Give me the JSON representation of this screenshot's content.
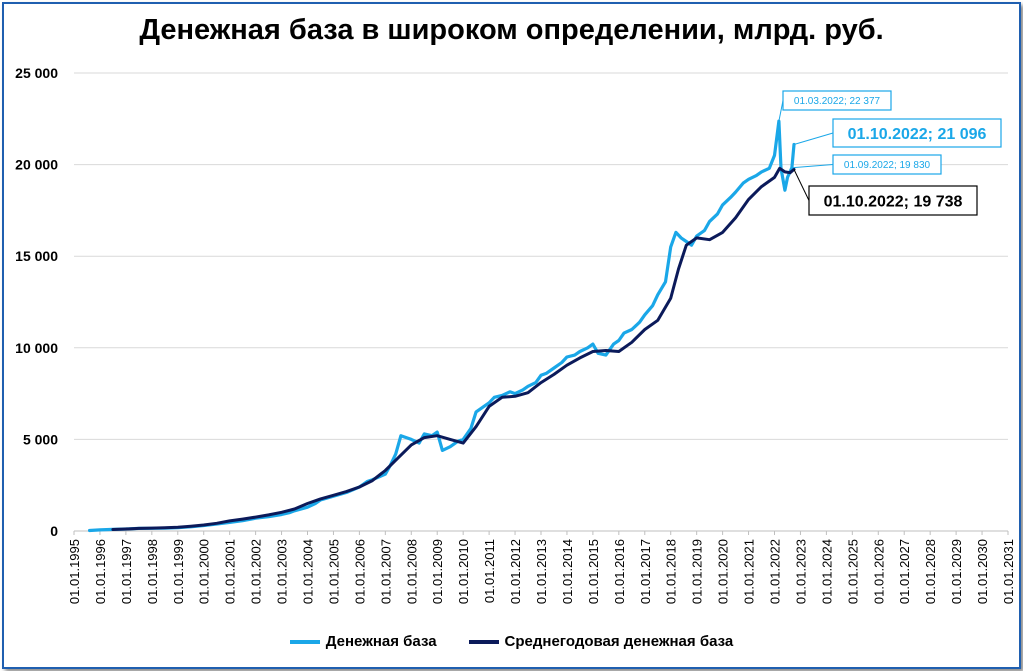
{
  "colors": {
    "base": "#1aa7e8",
    "avg": "#0b1a5a",
    "grid": "#d9d9d9",
    "frame": "#1f5fb0"
  },
  "chart_data": {
    "type": "line",
    "title": "Денежная база в широком определении, млрд. руб.",
    "ylim": [
      0,
      25000
    ],
    "yticks": [
      0,
      5000,
      10000,
      15000,
      20000,
      25000
    ],
    "ytick_labels": [
      "0",
      "5 000",
      "10 000",
      "15 000",
      "20 000",
      "25 000"
    ],
    "x_range": [
      1995,
      2031
    ],
    "xtick_labels": [
      "01.01.1995",
      "01.01.1996",
      "01.01.1997",
      "01.01.1998",
      "01.01.1999",
      "01.01.2000",
      "01.01.2001",
      "01.01.2002",
      "01.01.2003",
      "01.01.2004",
      "01.01.2005",
      "01.01.2006",
      "01.01.2007",
      "01.01.2008",
      "01.01.2009",
      "01.01.2010",
      "01.01.2011",
      "01.01.2012",
      "01.01.2013",
      "01.01.2014",
      "01.01.2015",
      "01.01.2016",
      "01.01.2017",
      "01.01.2018",
      "01.01.2019",
      "01.01.2020",
      "01.01.2021",
      "01.01.2022",
      "01.01.2023",
      "01.01.2024",
      "01.01.2025",
      "01.01.2026",
      "01.01.2027",
      "01.01.2028",
      "01.01.2029",
      "01.01.2030",
      "01.01.2031"
    ],
    "legend_position": "bottom",
    "series": [
      {
        "name": "Денежная база",
        "color_key": "base",
        "x": [
          1995.6,
          1996.0,
          1996.5,
          1997.0,
          1997.5,
          1998.0,
          1998.5,
          1999.0,
          1999.5,
          2000.0,
          2000.5,
          2001.0,
          2001.5,
          2002.0,
          2002.5,
          2003.0,
          2003.3,
          2003.5,
          2004.0,
          2004.3,
          2004.5,
          2005.0,
          2005.5,
          2006.0,
          2006.3,
          2006.5,
          2007.0,
          2007.2,
          2007.4,
          2007.6,
          2008.0,
          2008.3,
          2008.5,
          2008.8,
          2009.0,
          2009.2,
          2009.5,
          2009.8,
          2010.0,
          2010.3,
          2010.5,
          2010.8,
          2011.0,
          2011.2,
          2011.5,
          2011.8,
          2012.0,
          2012.3,
          2012.5,
          2012.8,
          2013.0,
          2013.2,
          2013.5,
          2013.8,
          2014.0,
          2014.3,
          2014.5,
          2014.8,
          2015.0,
          2015.2,
          2015.5,
          2015.8,
          2016.0,
          2016.2,
          2016.5,
          2016.8,
          2017.0,
          2017.3,
          2017.5,
          2017.8,
          2018.0,
          2018.2,
          2018.4,
          2018.6,
          2018.8,
          2019.0,
          2019.3,
          2019.5,
          2019.8,
          2020.0,
          2020.3,
          2020.5,
          2020.8,
          2021.0,
          2021.3,
          2021.5,
          2021.8,
          2022.0,
          2022.17,
          2022.25,
          2022.4,
          2022.5,
          2022.67,
          2022.75
        ],
        "values": [
          30,
          60,
          90,
          110,
          140,
          150,
          160,
          180,
          230,
          300,
          380,
          470,
          560,
          700,
          780,
          900,
          1000,
          1100,
          1300,
          1500,
          1700,
          1900,
          2100,
          2400,
          2700,
          2800,
          3100,
          3600,
          4200,
          5200,
          5000,
          4800,
          5300,
          5200,
          5400,
          4400,
          4600,
          4900,
          5000,
          5600,
          6500,
          6800,
          7000,
          7300,
          7400,
          7600,
          7500,
          7700,
          7900,
          8100,
          8500,
          8600,
          8900,
          9200,
          9500,
          9600,
          9800,
          10000,
          10200,
          9700,
          9600,
          10200,
          10400,
          10800,
          11000,
          11400,
          11800,
          12300,
          12900,
          13600,
          15500,
          16300,
          16000,
          15800,
          15600,
          16100,
          16400,
          16900,
          17300,
          17800,
          18200,
          18500,
          19000,
          19200,
          19400,
          19600,
          19800,
          20500,
          22377,
          19800,
          18600,
          19300,
          19830,
          21096
        ]
      },
      {
        "name": "Среднегодовая денежная база",
        "color_key": "avg",
        "x": [
          1996.5,
          1997.0,
          1997.5,
          1998.0,
          1998.5,
          1999.0,
          1999.5,
          2000.0,
          2000.5,
          2001.0,
          2001.5,
          2002.0,
          2002.5,
          2003.0,
          2003.5,
          2004.0,
          2004.5,
          2005.0,
          2005.5,
          2006.0,
          2006.5,
          2007.0,
          2007.5,
          2008.0,
          2008.5,
          2009.0,
          2009.5,
          2010.0,
          2010.5,
          2011.0,
          2011.5,
          2012.0,
          2012.5,
          2013.0,
          2013.5,
          2014.0,
          2014.5,
          2015.0,
          2015.5,
          2016.0,
          2016.5,
          2017.0,
          2017.5,
          2018.0,
          2018.3,
          2018.6,
          2019.0,
          2019.5,
          2020.0,
          2020.5,
          2021.0,
          2021.5,
          2022.0,
          2022.2,
          2022.4,
          2022.6,
          2022.75
        ],
        "values": [
          80,
          110,
          140,
          160,
          175,
          200,
          260,
          330,
          420,
          550,
          650,
          760,
          880,
          1020,
          1200,
          1500,
          1750,
          1950,
          2150,
          2400,
          2750,
          3300,
          4000,
          4700,
          5100,
          5200,
          5000,
          4800,
          5700,
          6800,
          7300,
          7350,
          7550,
          8100,
          8550,
          9050,
          9450,
          9800,
          9850,
          9800,
          10300,
          11000,
          11500,
          12700,
          14300,
          15600,
          16000,
          15900,
          16300,
          17100,
          18100,
          18800,
          19300,
          19800,
          19600,
          19560,
          19738
        ]
      }
    ],
    "annotations": [
      {
        "text": "01.03.2022;  22 377",
        "x": 2022.17,
        "y": 22377,
        "style": "small-blue"
      },
      {
        "text": "01.10.2022;  21 096",
        "x": 2022.75,
        "y": 21096,
        "style": "large-blue"
      },
      {
        "text": "01.09.2022;  19 830",
        "x": 2022.67,
        "y": 19830,
        "style": "small-blue"
      },
      {
        "text": "01.10.2022;  19 738",
        "x": 2022.75,
        "y": 19738,
        "style": "large-dark"
      }
    ]
  },
  "legend": {
    "items": [
      {
        "label": "Денежная база"
      },
      {
        "label": "Среднегодовая денежная база"
      }
    ]
  }
}
